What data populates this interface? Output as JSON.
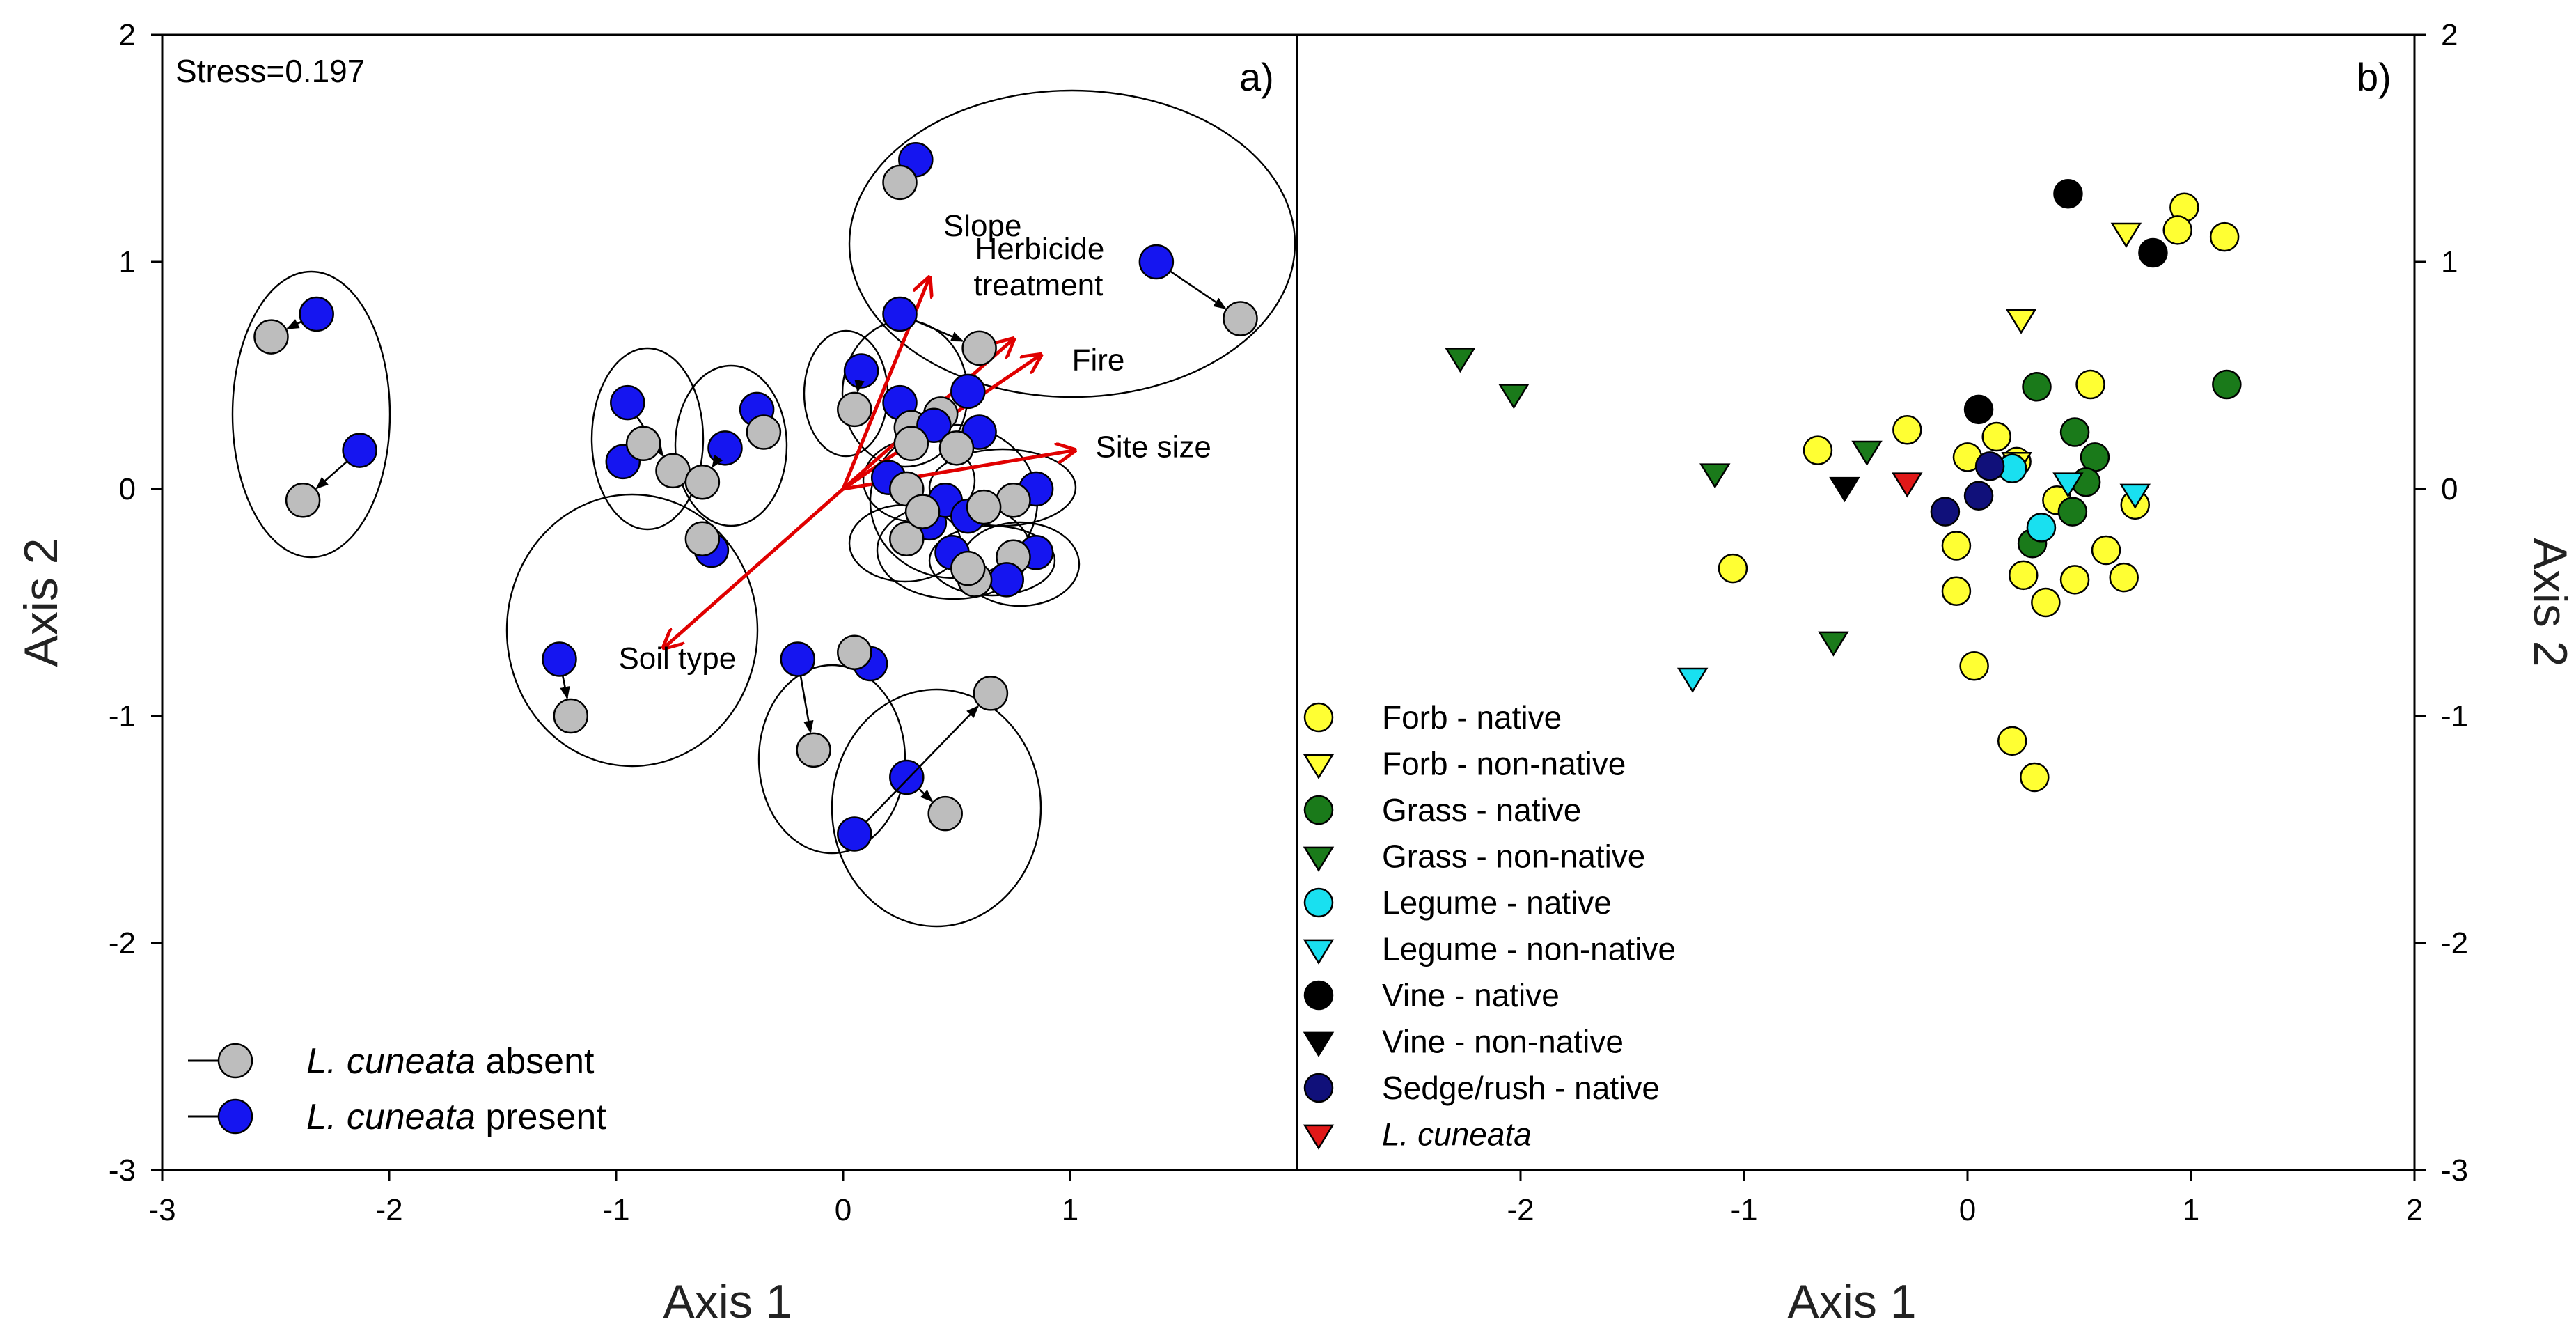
{
  "chart_data": [
    {
      "panel": "a",
      "type": "scatter",
      "panel_label": "a)",
      "annotation": "Stress=0.197",
      "xlabel": "Axis 1",
      "ylabel": "Axis 2",
      "xlim": [
        -3,
        2
      ],
      "ylim": [
        -3,
        2
      ],
      "xticks": [
        "-3",
        "-2",
        "-1",
        "0",
        "1"
      ],
      "yticks": [
        "-3",
        "-2",
        "-1",
        "0",
        "1",
        "2"
      ],
      "colors": {
        "absent": "#bdbdbd",
        "present": "#1515f0",
        "vector": "#e00000"
      },
      "legend": [
        {
          "key": "absent",
          "italic": "L. cuneata",
          "rest": " absent"
        },
        {
          "key": "present",
          "italic": "L. cuneata",
          "rest": " present"
        }
      ],
      "vectors": [
        {
          "label": "Slope",
          "x": 0.38,
          "y": 0.93
        },
        {
          "label": "Herbicide",
          "label2": "treatment",
          "x": 0.75,
          "y": 0.66
        },
        {
          "label": "Fire",
          "x": 0.87,
          "y": 0.59
        },
        {
          "label": "Site size",
          "x": 1.02,
          "y": 0.17
        },
        {
          "label": "Soil type",
          "x": -0.79,
          "y": -0.7
        }
      ],
      "pairs": [
        {
          "from": [
            -2.32,
            0.77
          ],
          "to": [
            -2.52,
            0.67
          ]
        },
        {
          "from": [
            -2.13,
            0.17
          ],
          "to": [
            -2.38,
            -0.05
          ]
        },
        {
          "from": [
            1.38,
            1.0
          ],
          "to": [
            1.75,
            0.75
          ]
        },
        {
          "from": [
            0.32,
            1.45
          ],
          "to": [
            0.25,
            1.35
          ]
        },
        {
          "from": [
            0.25,
            0.77
          ],
          "to": [
            0.6,
            0.62
          ]
        },
        {
          "from": [
            -0.95,
            0.38
          ],
          "to": [
            -0.75,
            0.08
          ]
        },
        {
          "from": [
            -0.97,
            0.12
          ],
          "to": [
            -0.88,
            0.2
          ]
        },
        {
          "from": [
            -0.52,
            0.18
          ],
          "to": [
            -0.62,
            0.03
          ]
        },
        {
          "from": [
            -0.38,
            0.35
          ],
          "to": [
            -0.35,
            0.25
          ]
        },
        {
          "from": [
            -0.58,
            -0.27
          ],
          "to": [
            -0.62,
            -0.22
          ]
        },
        {
          "from": [
            -1.25,
            -0.75
          ],
          "to": [
            -1.2,
            -1.0
          ]
        },
        {
          "from": [
            -0.2,
            -0.75
          ],
          "to": [
            -0.13,
            -1.15
          ]
        },
        {
          "from": [
            0.12,
            -0.77
          ],
          "to": [
            0.05,
            -0.72
          ]
        },
        {
          "from": [
            0.28,
            -1.27
          ],
          "to": [
            0.45,
            -1.43
          ]
        },
        {
          "from": [
            0.05,
            -1.52
          ],
          "to": [
            0.65,
            -0.9
          ]
        },
        {
          "from": [
            0.08,
            0.52
          ],
          "to": [
            0.05,
            0.35
          ]
        },
        {
          "from": [
            0.25,
            0.38
          ],
          "to": [
            0.3,
            0.27
          ]
        },
        {
          "from": [
            0.55,
            0.43
          ],
          "to": [
            0.43,
            0.33
          ]
        },
        {
          "from": [
            0.4,
            0.28
          ],
          "to": [
            0.3,
            0.2
          ]
        },
        {
          "from": [
            0.6,
            0.25
          ],
          "to": [
            0.5,
            0.18
          ]
        },
        {
          "from": [
            0.2,
            0.05
          ],
          "to": [
            0.28,
            0.0
          ]
        },
        {
          "from": [
            0.85,
            0.0
          ],
          "to": [
            0.75,
            -0.05
          ]
        },
        {
          "from": [
            0.38,
            -0.15
          ],
          "to": [
            0.28,
            -0.22
          ]
        },
        {
          "from": [
            0.45,
            -0.05
          ],
          "to": [
            0.35,
            -0.1
          ]
        },
        {
          "from": [
            0.55,
            -0.12
          ],
          "to": [
            0.62,
            -0.08
          ]
        },
        {
          "from": [
            0.85,
            -0.28
          ],
          "to": [
            0.75,
            -0.3
          ]
        },
        {
          "from": [
            0.72,
            -0.4
          ],
          "to": [
            0.58,
            -0.4
          ]
        },
        {
          "from": [
            0.48,
            -0.28
          ],
          "to": [
            0.55,
            -0.35
          ]
        }
      ]
    },
    {
      "panel": "b",
      "type": "scatter",
      "panel_label": "b)",
      "xlabel": "Axis 1",
      "ylabel": "Axis 2",
      "xlim": [
        -3,
        2
      ],
      "ylim": [
        -3,
        2
      ],
      "xticks": [
        "-2",
        "-1",
        "0",
        "1",
        "2"
      ],
      "yticks": [
        "-3",
        "-2",
        "-1",
        "0",
        "1",
        "2"
      ],
      "series": [
        {
          "name": "Forb - native",
          "marker": "circle",
          "color": "#ffff33",
          "points": [
            [
              0.97,
              1.24
            ],
            [
              0.94,
              1.14
            ],
            [
              1.15,
              1.11
            ],
            [
              -0.67,
              0.17
            ],
            [
              -0.27,
              0.26
            ],
            [
              0.13,
              0.23
            ],
            [
              0.55,
              0.46
            ],
            [
              0.0,
              0.14
            ],
            [
              0.22,
              0.12
            ],
            [
              0.4,
              -0.05
            ],
            [
              0.75,
              -0.07
            ],
            [
              -1.05,
              -0.35
            ],
            [
              -0.05,
              -0.25
            ],
            [
              0.25,
              -0.38
            ],
            [
              0.48,
              -0.4
            ],
            [
              0.62,
              -0.27
            ],
            [
              0.7,
              -0.39
            ],
            [
              0.35,
              -0.5
            ],
            [
              -0.05,
              -0.45
            ],
            [
              0.03,
              -0.78
            ],
            [
              0.2,
              -1.11
            ],
            [
              0.3,
              -1.27
            ]
          ]
        },
        {
          "name": "Forb - non-native",
          "marker": "triangle",
          "color": "#ffff33",
          "points": [
            [
              0.71,
              1.13
            ],
            [
              0.24,
              0.75
            ],
            [
              0.22,
              0.12
            ]
          ]
        },
        {
          "name": "Grass - native",
          "marker": "circle",
          "color": "#1a7a1a",
          "points": [
            [
              0.31,
              0.45
            ],
            [
              1.16,
              0.46
            ],
            [
              0.48,
              0.25
            ],
            [
              0.57,
              0.14
            ],
            [
              0.53,
              0.03
            ],
            [
              0.47,
              -0.1
            ],
            [
              0.29,
              -0.24
            ]
          ]
        },
        {
          "name": "Grass - non-native",
          "marker": "triangle",
          "color": "#1a7a1a",
          "points": [
            [
              -2.27,
              0.58
            ],
            [
              -2.03,
              0.42
            ],
            [
              -1.13,
              0.07
            ],
            [
              -0.45,
              0.17
            ],
            [
              -0.6,
              -0.67
            ]
          ]
        },
        {
          "name": "Legume - native",
          "marker": "circle",
          "color": "#19e0f0",
          "points": [
            [
              0.2,
              0.09
            ],
            [
              0.33,
              -0.17
            ]
          ]
        },
        {
          "name": "Legume - non-native",
          "marker": "triangle",
          "color": "#19e0f0",
          "points": [
            [
              0.45,
              0.03
            ],
            [
              0.75,
              -0.02
            ],
            [
              -1.23,
              -0.83
            ]
          ]
        },
        {
          "name": "Vine - native",
          "marker": "circle",
          "color": "#000000",
          "points": [
            [
              0.45,
              1.3
            ],
            [
              0.83,
              1.04
            ],
            [
              0.05,
              0.35
            ]
          ]
        },
        {
          "name": "Vine - non-native",
          "marker": "triangle",
          "color": "#000000",
          "points": [
            [
              -0.55,
              0.01
            ]
          ]
        },
        {
          "name": "Sedge/rush - native",
          "marker": "circle",
          "color": "#10107a",
          "points": [
            [
              0.1,
              0.1
            ],
            [
              0.05,
              -0.03
            ],
            [
              -0.1,
              -0.1
            ]
          ]
        },
        {
          "name": "L. cuneata",
          "marker": "triangle",
          "color": "#e01818",
          "italic": true,
          "points": [
            [
              -0.27,
              0.03
            ]
          ]
        }
      ]
    }
  ]
}
